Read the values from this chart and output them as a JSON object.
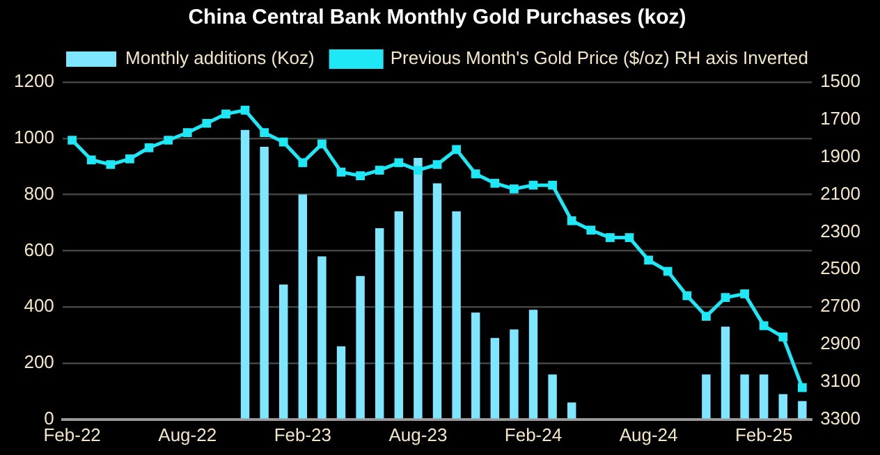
{
  "chart_data": {
    "type": "bar",
    "title": "China Central Bank Monthly Gold Purchases (koz)",
    "categories": [
      "Feb-22",
      null,
      null,
      null,
      null,
      null,
      "Aug-22",
      null,
      null,
      null,
      null,
      null,
      "Feb-23",
      null,
      null,
      null,
      null,
      null,
      "Aug-23",
      null,
      null,
      null,
      null,
      null,
      "Feb-24",
      null,
      null,
      null,
      null,
      null,
      "Aug-24",
      null,
      null,
      null,
      null,
      null,
      "Feb-25",
      null,
      null
    ],
    "series": [
      {
        "name": "Monthly additions (Koz)",
        "color": "#7fe6ff",
        "values": [
          0,
          0,
          0,
          0,
          0,
          0,
          0,
          0,
          0,
          1030,
          970,
          480,
          800,
          580,
          260,
          510,
          680,
          740,
          930,
          840,
          740,
          380,
          290,
          320,
          390,
          160,
          60,
          0,
          0,
          0,
          0,
          0,
          0,
          160,
          330,
          160,
          160,
          90,
          65
        ]
      },
      {
        "name": "Previous Month's Gold Price ($/oz) RH axis Inverted",
        "type": "line",
        "axis": "y2",
        "color": "#1ee8f5",
        "values": [
          1810,
          1915,
          1940,
          1910,
          1850,
          1810,
          1770,
          1720,
          1670,
          1650,
          1770,
          1820,
          1930,
          1830,
          1980,
          2000,
          1970,
          1930,
          1970,
          1940,
          1860,
          1990,
          2040,
          2070,
          2050,
          2050,
          2240,
          2290,
          2330,
          2330,
          2450,
          2510,
          2640,
          2750,
          2650,
          2630,
          2800,
          2860,
          3130
        ]
      }
    ],
    "ylim": [
      0,
      1200
    ],
    "yticks": [
      0,
      200,
      400,
      600,
      800,
      1000,
      1200
    ],
    "y2lim": [
      3300,
      1500
    ],
    "y2ticks": [
      1500,
      1700,
      1900,
      2100,
      2300,
      2500,
      2700,
      2900,
      3100,
      3300
    ],
    "grid": "y",
    "legend": "top",
    "marker": "square",
    "line_style": "solid"
  }
}
